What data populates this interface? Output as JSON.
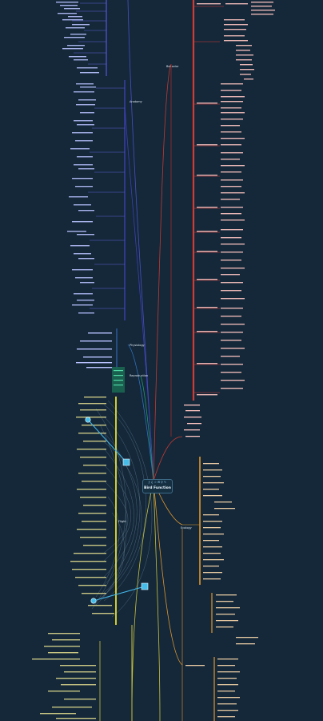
{
  "map": {
    "root": {
      "line1": "ƒ ♫ ☆ ✉ ⚲ ✎",
      "title": "Bird Function"
    },
    "branches": [
      {
        "label": "Anatomy",
        "color": "#4a4fc0"
      },
      {
        "label": "Physiology",
        "color": "#3c3fb0"
      },
      {
        "label": "Reproduction",
        "color": "#1f9a6c"
      },
      {
        "label": "Behavior",
        "color": "#e03a35"
      },
      {
        "label": "Flight",
        "color": "#c9c13a"
      },
      {
        "label": "Ecology",
        "color": "#e0962b"
      }
    ]
  }
}
